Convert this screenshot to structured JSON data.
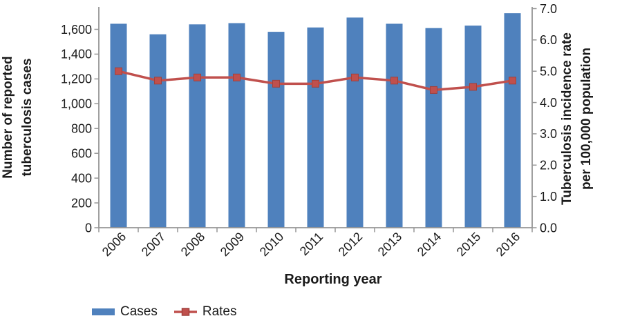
{
  "chart_data": {
    "type": "combo",
    "subtype": "bar+line, dual y-axis",
    "categories": [
      "2006",
      "2007",
      "2008",
      "2009",
      "2010",
      "2011",
      "2012",
      "2013",
      "2014",
      "2015",
      "2016"
    ],
    "series": [
      {
        "name": "Cases",
        "type": "bar",
        "axis": "left",
        "color": "#4F81BD",
        "values": [
          1645,
          1560,
          1640,
          1650,
          1580,
          1615,
          1695,
          1645,
          1610,
          1630,
          1730
        ]
      },
      {
        "name": "Rates",
        "type": "line",
        "axis": "right",
        "color": "#C0504D",
        "marker": "square",
        "values": [
          5.0,
          4.7,
          4.8,
          4.8,
          4.6,
          4.6,
          4.8,
          4.7,
          4.4,
          4.5,
          4.7
        ]
      }
    ],
    "x_axis": {
      "title": "Reporting year"
    },
    "left_axis": {
      "title": "Number of reported tuberculosis cases",
      "title_lines": [
        "Number of reported",
        "tuberculosis cases"
      ],
      "min": 0,
      "max": 1600,
      "step": 200,
      "tick_values": [
        0,
        200,
        400,
        600,
        800,
        1000,
        1200,
        1400,
        1600
      ],
      "tick_labels": [
        "0",
        "200",
        "400",
        "600",
        "800",
        "1,000",
        "1,200",
        "1,400",
        "1,600"
      ]
    },
    "right_axis": {
      "title": "Tuberculosis incidence rate per 100,000 population",
      "title_lines": [
        "Tuberculosis incidence rate",
        "per 100,000 population"
      ],
      "min": 0.0,
      "max": 7.0,
      "step": 1.0,
      "tick_values": [
        0,
        1,
        2,
        3,
        4,
        5,
        6,
        7
      ],
      "tick_labels": [
        "0.0",
        "1.0",
        "2.0",
        "3.0",
        "4.0",
        "5.0",
        "6.0",
        "7.0"
      ]
    },
    "legend": {
      "position": "bottom-left",
      "items": [
        "Cases",
        "Rates"
      ]
    },
    "grid": "off",
    "background": "#FFFFFF"
  },
  "colors": {
    "bar": "#4F81BD",
    "line": "#C0504D",
    "marker_border": "#A0413D",
    "axis": "#969696",
    "text": "#1A1A1A"
  }
}
